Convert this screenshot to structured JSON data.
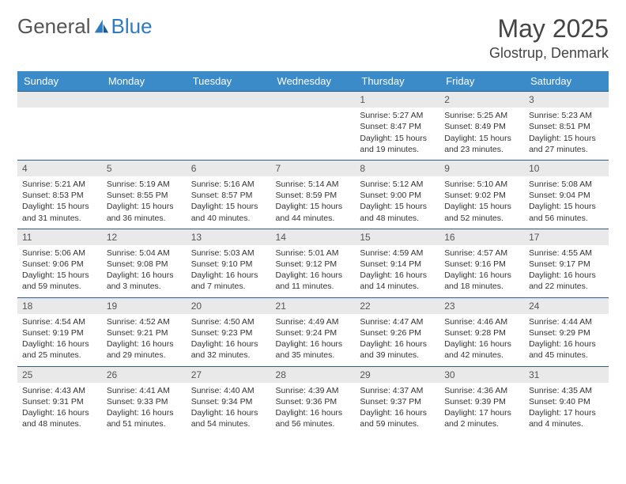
{
  "brand": {
    "part1": "General",
    "part2": "Blue"
  },
  "title": {
    "month_year": "May 2025",
    "location": "Glostrup, Denmark"
  },
  "colors": {
    "header_bg": "#3b8bc8",
    "header_text": "#ffffff",
    "row_border": "#2f5d8a",
    "daynum_bg": "#e9e9e9",
    "body_text": "#333333",
    "brand_blue": "#2f7bbf"
  },
  "weekdays": [
    "Sunday",
    "Monday",
    "Tuesday",
    "Wednesday",
    "Thursday",
    "Friday",
    "Saturday"
  ],
  "weeks": [
    [
      null,
      null,
      null,
      null,
      {
        "n": "1",
        "sr": "5:27 AM",
        "ss": "8:47 PM",
        "dl": "15 hours and 19 minutes."
      },
      {
        "n": "2",
        "sr": "5:25 AM",
        "ss": "8:49 PM",
        "dl": "15 hours and 23 minutes."
      },
      {
        "n": "3",
        "sr": "5:23 AM",
        "ss": "8:51 PM",
        "dl": "15 hours and 27 minutes."
      }
    ],
    [
      {
        "n": "4",
        "sr": "5:21 AM",
        "ss": "8:53 PM",
        "dl": "15 hours and 31 minutes."
      },
      {
        "n": "5",
        "sr": "5:19 AM",
        "ss": "8:55 PM",
        "dl": "15 hours and 36 minutes."
      },
      {
        "n": "6",
        "sr": "5:16 AM",
        "ss": "8:57 PM",
        "dl": "15 hours and 40 minutes."
      },
      {
        "n": "7",
        "sr": "5:14 AM",
        "ss": "8:59 PM",
        "dl": "15 hours and 44 minutes."
      },
      {
        "n": "8",
        "sr": "5:12 AM",
        "ss": "9:00 PM",
        "dl": "15 hours and 48 minutes."
      },
      {
        "n": "9",
        "sr": "5:10 AM",
        "ss": "9:02 PM",
        "dl": "15 hours and 52 minutes."
      },
      {
        "n": "10",
        "sr": "5:08 AM",
        "ss": "9:04 PM",
        "dl": "15 hours and 56 minutes."
      }
    ],
    [
      {
        "n": "11",
        "sr": "5:06 AM",
        "ss": "9:06 PM",
        "dl": "15 hours and 59 minutes."
      },
      {
        "n": "12",
        "sr": "5:04 AM",
        "ss": "9:08 PM",
        "dl": "16 hours and 3 minutes."
      },
      {
        "n": "13",
        "sr": "5:03 AM",
        "ss": "9:10 PM",
        "dl": "16 hours and 7 minutes."
      },
      {
        "n": "14",
        "sr": "5:01 AM",
        "ss": "9:12 PM",
        "dl": "16 hours and 11 minutes."
      },
      {
        "n": "15",
        "sr": "4:59 AM",
        "ss": "9:14 PM",
        "dl": "16 hours and 14 minutes."
      },
      {
        "n": "16",
        "sr": "4:57 AM",
        "ss": "9:16 PM",
        "dl": "16 hours and 18 minutes."
      },
      {
        "n": "17",
        "sr": "4:55 AM",
        "ss": "9:17 PM",
        "dl": "16 hours and 22 minutes."
      }
    ],
    [
      {
        "n": "18",
        "sr": "4:54 AM",
        "ss": "9:19 PM",
        "dl": "16 hours and 25 minutes."
      },
      {
        "n": "19",
        "sr": "4:52 AM",
        "ss": "9:21 PM",
        "dl": "16 hours and 29 minutes."
      },
      {
        "n": "20",
        "sr": "4:50 AM",
        "ss": "9:23 PM",
        "dl": "16 hours and 32 minutes."
      },
      {
        "n": "21",
        "sr": "4:49 AM",
        "ss": "9:24 PM",
        "dl": "16 hours and 35 minutes."
      },
      {
        "n": "22",
        "sr": "4:47 AM",
        "ss": "9:26 PM",
        "dl": "16 hours and 39 minutes."
      },
      {
        "n": "23",
        "sr": "4:46 AM",
        "ss": "9:28 PM",
        "dl": "16 hours and 42 minutes."
      },
      {
        "n": "24",
        "sr": "4:44 AM",
        "ss": "9:29 PM",
        "dl": "16 hours and 45 minutes."
      }
    ],
    [
      {
        "n": "25",
        "sr": "4:43 AM",
        "ss": "9:31 PM",
        "dl": "16 hours and 48 minutes."
      },
      {
        "n": "26",
        "sr": "4:41 AM",
        "ss": "9:33 PM",
        "dl": "16 hours and 51 minutes."
      },
      {
        "n": "27",
        "sr": "4:40 AM",
        "ss": "9:34 PM",
        "dl": "16 hours and 54 minutes."
      },
      {
        "n": "28",
        "sr": "4:39 AM",
        "ss": "9:36 PM",
        "dl": "16 hours and 56 minutes."
      },
      {
        "n": "29",
        "sr": "4:37 AM",
        "ss": "9:37 PM",
        "dl": "16 hours and 59 minutes."
      },
      {
        "n": "30",
        "sr": "4:36 AM",
        "ss": "9:39 PM",
        "dl": "17 hours and 2 minutes."
      },
      {
        "n": "31",
        "sr": "4:35 AM",
        "ss": "9:40 PM",
        "dl": "17 hours and 4 minutes."
      }
    ]
  ],
  "labels": {
    "sunrise": "Sunrise:",
    "sunset": "Sunset:",
    "daylight": "Daylight:"
  }
}
